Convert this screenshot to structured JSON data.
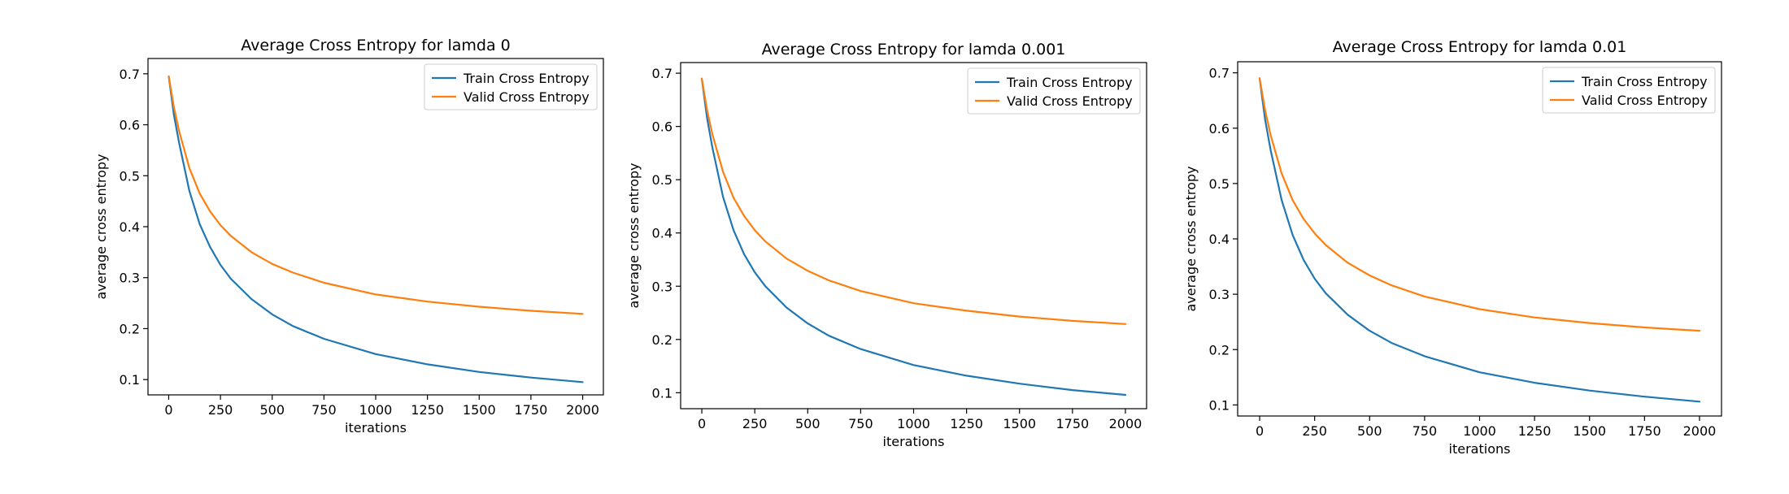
{
  "chart_data": [
    {
      "type": "line",
      "title": "Average Cross Entropy for lamda 0",
      "xlabel": "iterations",
      "ylabel": "average cross entropy",
      "xlim": [
        -100,
        2100
      ],
      "ylim": [
        0.07,
        0.73
      ],
      "xticks": [
        0,
        250,
        500,
        750,
        1000,
        1250,
        1500,
        1750,
        2000
      ],
      "yticks": [
        0.1,
        0.2,
        0.3,
        0.4,
        0.5,
        0.6,
        0.7
      ],
      "grid": false,
      "legend_position": "top-right",
      "series": [
        {
          "name": "Train Cross Entropy",
          "color": "#1f77b4",
          "x": [
            0,
            25,
            50,
            100,
            150,
            200,
            250,
            300,
            400,
            500,
            600,
            750,
            1000,
            1250,
            1500,
            1750,
            2000
          ],
          "y": [
            0.695,
            0.62,
            0.565,
            0.47,
            0.405,
            0.36,
            0.325,
            0.298,
            0.258,
            0.228,
            0.205,
            0.18,
            0.15,
            0.13,
            0.115,
            0.104,
            0.095
          ]
        },
        {
          "name": "Valid Cross Entropy",
          "color": "#ff7f0e",
          "x": [
            0,
            25,
            50,
            100,
            150,
            200,
            250,
            300,
            400,
            500,
            600,
            750,
            1000,
            1250,
            1500,
            1750,
            2000
          ],
          "y": [
            0.695,
            0.635,
            0.588,
            0.515,
            0.465,
            0.43,
            0.403,
            0.382,
            0.35,
            0.327,
            0.31,
            0.29,
            0.267,
            0.253,
            0.243,
            0.235,
            0.229
          ]
        }
      ]
    },
    {
      "type": "line",
      "title": "Average Cross Entropy for lamda 0.001",
      "xlabel": "iterations",
      "ylabel": "average cross entropy",
      "xlim": [
        -100,
        2100
      ],
      "ylim": [
        0.07,
        0.72
      ],
      "xticks": [
        0,
        250,
        500,
        750,
        1000,
        1250,
        1500,
        1750,
        2000
      ],
      "yticks": [
        0.1,
        0.2,
        0.3,
        0.4,
        0.5,
        0.6,
        0.7
      ],
      "grid": false,
      "legend_position": "top-right",
      "series": [
        {
          "name": "Train Cross Entropy",
          "color": "#1f77b4",
          "x": [
            0,
            25,
            50,
            100,
            150,
            200,
            250,
            300,
            400,
            500,
            600,
            750,
            1000,
            1250,
            1500,
            1750,
            2000
          ],
          "y": [
            0.69,
            0.615,
            0.56,
            0.468,
            0.405,
            0.36,
            0.326,
            0.3,
            0.26,
            0.23,
            0.207,
            0.182,
            0.152,
            0.132,
            0.117,
            0.105,
            0.096
          ]
        },
        {
          "name": "Valid Cross Entropy",
          "color": "#ff7f0e",
          "x": [
            0,
            25,
            50,
            100,
            150,
            200,
            250,
            300,
            400,
            500,
            600,
            750,
            1000,
            1250,
            1500,
            1750,
            2000
          ],
          "y": [
            0.69,
            0.63,
            0.585,
            0.515,
            0.466,
            0.432,
            0.405,
            0.384,
            0.352,
            0.329,
            0.311,
            0.291,
            0.268,
            0.254,
            0.243,
            0.235,
            0.229
          ]
        }
      ]
    },
    {
      "type": "line",
      "title": "Average Cross Entropy for lamda 0.01",
      "xlabel": "iterations",
      "ylabel": "average cross entropy",
      "xlim": [
        -100,
        2100
      ],
      "ylim": [
        0.08,
        0.72
      ],
      "xticks": [
        0,
        250,
        500,
        750,
        1000,
        1250,
        1500,
        1750,
        2000
      ],
      "yticks": [
        0.1,
        0.2,
        0.3,
        0.4,
        0.5,
        0.6,
        0.7
      ],
      "grid": false,
      "legend_position": "top-right",
      "series": [
        {
          "name": "Train Cross Entropy",
          "color": "#1f77b4",
          "x": [
            0,
            25,
            50,
            100,
            150,
            200,
            250,
            300,
            400,
            500,
            600,
            750,
            1000,
            1250,
            1500,
            1750,
            2000
          ],
          "y": [
            0.69,
            0.615,
            0.56,
            0.47,
            0.407,
            0.362,
            0.328,
            0.302,
            0.263,
            0.234,
            0.212,
            0.188,
            0.159,
            0.14,
            0.126,
            0.115,
            0.106
          ]
        },
        {
          "name": "Valid Cross Entropy",
          "color": "#ff7f0e",
          "x": [
            0,
            25,
            50,
            100,
            150,
            200,
            250,
            300,
            400,
            500,
            600,
            750,
            1000,
            1250,
            1500,
            1750,
            2000
          ],
          "y": [
            0.69,
            0.632,
            0.587,
            0.518,
            0.47,
            0.436,
            0.41,
            0.389,
            0.357,
            0.334,
            0.316,
            0.296,
            0.273,
            0.258,
            0.248,
            0.24,
            0.234
          ]
        }
      ]
    }
  ]
}
